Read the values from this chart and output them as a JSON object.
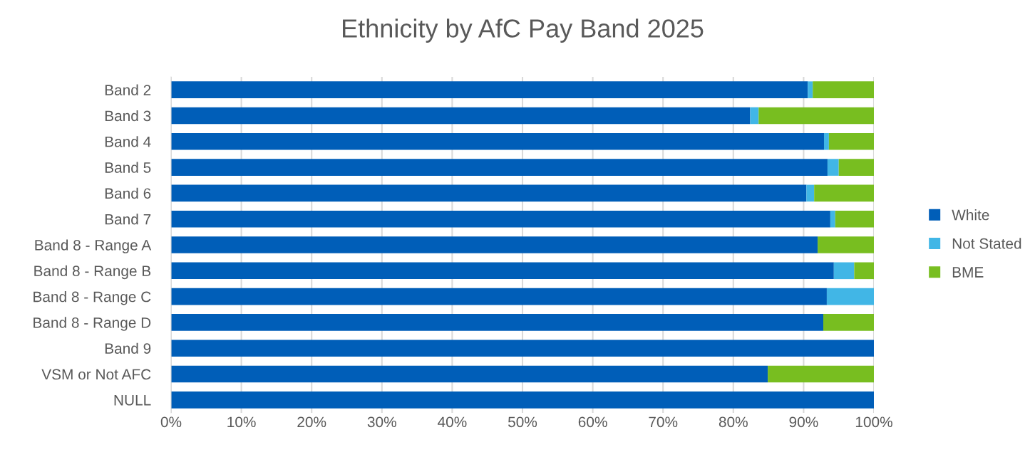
{
  "chart_data": {
    "type": "bar",
    "orientation": "horizontal",
    "stacked": true,
    "title": "Ethnicity by AfC Pay Band 2025",
    "categories": [
      "Band 2",
      "Band 3",
      "Band 4",
      "Band 5",
      "Band 6",
      "Band 7",
      "Band 8 - Range A",
      "Band 8 - Range B",
      "Band 8 - Range C",
      "Band 8 - Range D",
      "Band 9",
      "VSM or Not AFC",
      "NULL"
    ],
    "series": [
      {
        "name": "White",
        "color": "#005eb8",
        "values": [
          90.6,
          82.4,
          92.9,
          93.4,
          90.4,
          93.8,
          92.0,
          94.3,
          93.3,
          92.8,
          100,
          84.9,
          100
        ]
      },
      {
        "name": "Not Stated",
        "color": "#41b6e6",
        "values": [
          0.7,
          1.2,
          0.7,
          1.6,
          1.1,
          0.7,
          0,
          2.9,
          6.7,
          0,
          0,
          0,
          0
        ]
      },
      {
        "name": "BME",
        "color": "#78be20",
        "values": [
          8.7,
          16.4,
          6.4,
          5.0,
          8.5,
          5.5,
          8.0,
          2.8,
          0,
          7.2,
          0,
          15.1,
          0
        ]
      }
    ],
    "xlim": [
      0,
      100
    ],
    "xticks": [
      {
        "value": 0,
        "label": "0%"
      },
      {
        "value": 10,
        "label": "10%"
      },
      {
        "value": 20,
        "label": "20%"
      },
      {
        "value": 30,
        "label": "30%"
      },
      {
        "value": 40,
        "label": "40%"
      },
      {
        "value": 50,
        "label": "50%"
      },
      {
        "value": 60,
        "label": "60%"
      },
      {
        "value": 70,
        "label": "70%"
      },
      {
        "value": 80,
        "label": "80%"
      },
      {
        "value": 90,
        "label": "90%"
      },
      {
        "value": 100,
        "label": "100%"
      }
    ],
    "grid": "x",
    "legend": "right"
  }
}
